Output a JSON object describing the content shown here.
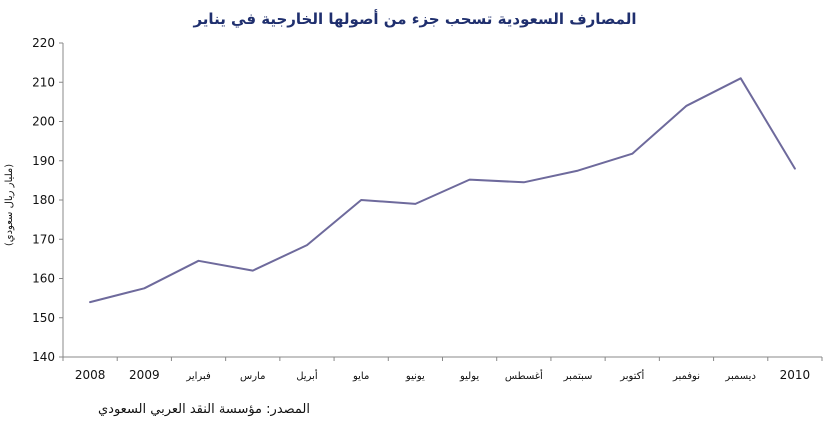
{
  "chart_data": {
    "type": "line",
    "title": "المصارف السعودية تسحب جزء من أصولها الخارجية في يناير",
    "xlabel": "",
    "ylabel": "(مليار ريال سعودي)",
    "categories": [
      "2008",
      "2009",
      "فبراير",
      "مارس",
      "أبريل",
      "مايو",
      "يونيو",
      "يوليو",
      "أغسطس",
      "سبتمبر",
      "أكتوبر",
      "نوفمبر",
      "ديسمبر",
      "2010"
    ],
    "series": [
      {
        "values": [
          154,
          157.5,
          164.5,
          162,
          168.5,
          180,
          179,
          185.2,
          184.5,
          187.5,
          191.8,
          204,
          211,
          188
        ]
      }
    ],
    "ylim": [
      140,
      220
    ],
    "yticks": [
      140,
      150,
      160,
      170,
      180,
      190,
      200,
      210,
      220
    ],
    "grid": false,
    "line_color": "#6e6a9c",
    "source": "المصدر: مؤسسة النقد العربي السعودي"
  }
}
